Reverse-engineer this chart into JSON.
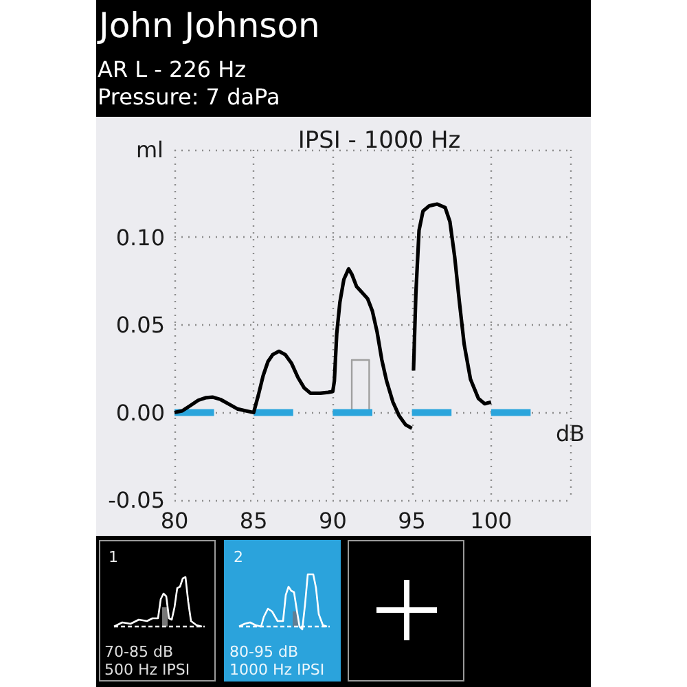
{
  "chart_data": {
    "type": "line",
    "title": "IPSI - 1000 Hz",
    "xlabel": "dB",
    "ylabel": "ml",
    "annotations": [
      "John Johnson",
      "AR L - 226 Hz",
      "Pressure: 7 daPa",
      "1",
      "70-85 dB",
      "500 Hz IPSI",
      "2",
      "80-95 dB",
      "1000 Hz IPSI"
    ],
    "xlim": [
      80,
      105
    ],
    "xticks": [
      80,
      85,
      90,
      95,
      100,
      {
        "value": 105,
        "label": null
      }
    ],
    "ylim": [
      -0.05,
      0.15
    ],
    "yticks": [
      -0.05,
      {
        "value": 0,
        "label": "0.00"
      },
      0.05,
      {
        "value": 0.1,
        "label": "0.10"
      },
      {
        "value": 0.15,
        "label": null
      }
    ],
    "grid": true,
    "marker": "none",
    "line_style": "solid",
    "series": [
      {
        "color": "#a0a0a0",
        "x": [
          91.2,
          91.2,
          92.3,
          92.3
        ],
        "values": [
          0,
          0.03,
          0.03,
          0
        ]
      },
      {
        "color": "#2ba5dc",
        "x": [
          80,
          82.5
        ],
        "values": [
          0,
          0
        ]
      },
      {
        "color": "#2ba5dc",
        "x": [
          85,
          87.5
        ],
        "values": [
          0,
          0
        ]
      },
      {
        "color": "#2ba5dc",
        "x": [
          90,
          92.5
        ],
        "values": [
          0,
          0
        ]
      },
      {
        "color": "#2ba5dc",
        "x": [
          95,
          97.5
        ],
        "values": [
          0,
          0
        ]
      },
      {
        "color": "#2ba5dc",
        "x": [
          100,
          102.5
        ],
        "values": [
          0,
          0
        ]
      },
      {
        "color": "#000000",
        "x": [
          80,
          80.5,
          81,
          81.5,
          82,
          82.4,
          82.9,
          83.4,
          84,
          84.5,
          85,
          85.3,
          85.6,
          85.9,
          86.2,
          86.6,
          87,
          87.4,
          87.8,
          88.2,
          88.6,
          89.2,
          89.7,
          90,
          90.1,
          90.25,
          90.45,
          90.7,
          91,
          91.2,
          91.5,
          91.8,
          92.2,
          92.5,
          92.8,
          93.1,
          93.4,
          93.8,
          94.2,
          94.6,
          95
        ],
        "values": [
          0,
          0.001,
          0.004,
          0.007,
          0.0085,
          0.0088,
          0.0075,
          0.005,
          0.002,
          0.001,
          0,
          0.01,
          0.021,
          0.029,
          0.033,
          0.035,
          0.033,
          0.028,
          0.02,
          0.014,
          0.011,
          0.011,
          0.0115,
          0.012,
          0.018,
          0.045,
          0.063,
          0.076,
          0.082,
          0.079,
          0.072,
          0.069,
          0.065,
          0.058,
          0.046,
          0.03,
          0.018,
          0.006,
          -0.002,
          -0.007,
          -0.009
        ]
      },
      {
        "color": "#000000",
        "x": [
          95.1,
          95.25,
          95.45,
          95.7,
          96.1,
          96.6,
          97.1,
          97.4,
          97.7,
          98,
          98.3,
          98.7,
          99.2,
          99.6,
          100
        ],
        "values": [
          0.024,
          0.068,
          0.104,
          0.115,
          0.118,
          0.119,
          0.117,
          0.109,
          0.089,
          0.063,
          0.039,
          0.019,
          0.008,
          0.005,
          0.006
        ]
      }
    ]
  }
}
